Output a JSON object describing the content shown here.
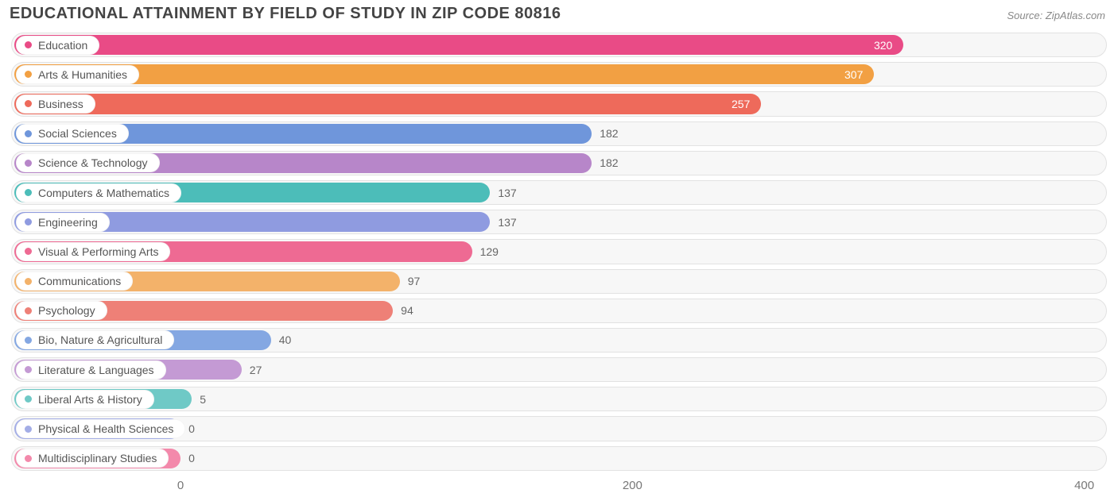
{
  "title": "EDUCATIONAL ATTAINMENT BY FIELD OF STUDY IN ZIP CODE 80816",
  "source": "Source: ZipAtlas.com",
  "chart": {
    "type": "bar-horizontal",
    "background_color": "#ffffff",
    "track_bg": "#f7f7f7",
    "track_border": "#e2e2e2",
    "label_font_size": 14,
    "title_font_size": 20,
    "title_color": "#444444",
    "value_color": "#666666",
    "axis_color": "#777777",
    "x_axis": {
      "min": -75,
      "max": 410,
      "ticks": [
        0,
        200,
        400
      ]
    },
    "value_inside_threshold": 200,
    "bars": [
      {
        "label": "Education",
        "value": 320,
        "color": "#e94b86"
      },
      {
        "label": "Arts & Humanities",
        "value": 307,
        "color": "#f2a043"
      },
      {
        "label": "Business",
        "value": 257,
        "color": "#ee6a5b"
      },
      {
        "label": "Social Sciences",
        "value": 182,
        "color": "#6f96db"
      },
      {
        "label": "Science & Technology",
        "value": 182,
        "color": "#b786c9"
      },
      {
        "label": "Computers & Mathematics",
        "value": 137,
        "color": "#4cbdb9"
      },
      {
        "label": "Engineering",
        "value": 137,
        "color": "#8f9be0"
      },
      {
        "label": "Visual & Performing Arts",
        "value": 129,
        "color": "#ee6a93"
      },
      {
        "label": "Communications",
        "value": 97,
        "color": "#f3b26a"
      },
      {
        "label": "Psychology",
        "value": 94,
        "color": "#ee8077"
      },
      {
        "label": "Bio, Nature & Agricultural",
        "value": 40,
        "color": "#84a7e2"
      },
      {
        "label": "Literature & Languages",
        "value": 27,
        "color": "#c49ad4"
      },
      {
        "label": "Liberal Arts & History",
        "value": 5,
        "color": "#6fc9c6"
      },
      {
        "label": "Physical & Health Sciences",
        "value": 0,
        "color": "#a3ade6"
      },
      {
        "label": "Multidisciplinary Studies",
        "value": 0,
        "color": "#f389ab"
      }
    ]
  }
}
